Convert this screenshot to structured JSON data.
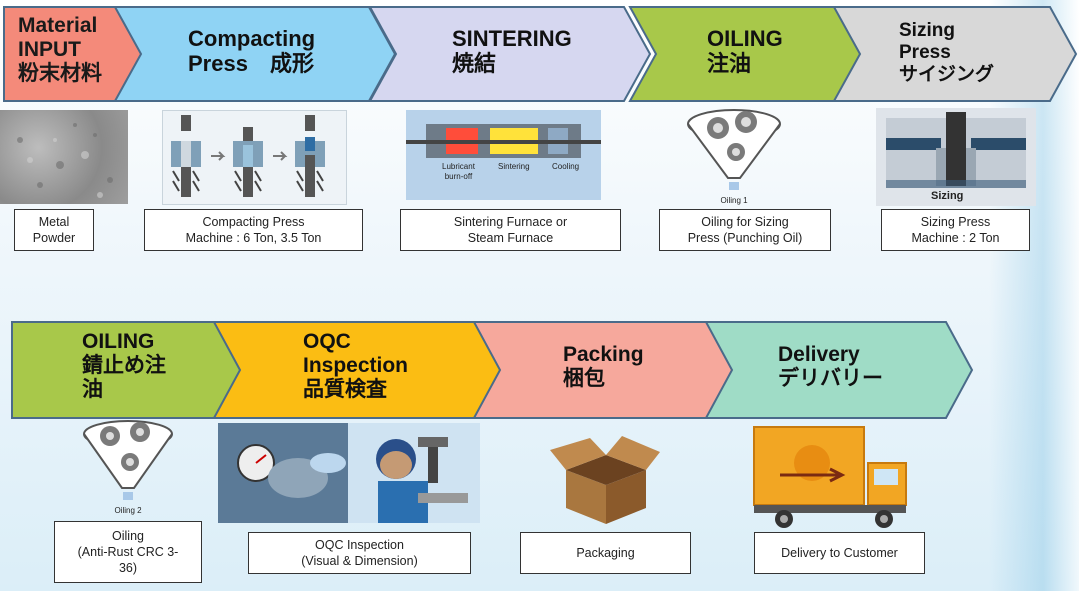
{
  "row1": {
    "steps": [
      {
        "title": "Material\nINPUT\n粉末材料",
        "color": "#f48a7a"
      },
      {
        "title": "Compacting\nPress　成形",
        "color": "#8fd3f4"
      },
      {
        "title": "SINTERING\n焼結",
        "color": "#d6d7f0"
      },
      {
        "title": "OILING\n注油",
        "color": "#a8c84a"
      },
      {
        "title": "Sizing\nPress\nサイジング",
        "color": "#d8d8d8"
      }
    ],
    "captions": [
      "Metal\nPowder",
      "Compacting Press\nMachine : 6 Ton, 3.5 Ton",
      "Sintering Furnace or\nSteam Furnace",
      "Oiling for Sizing\nPress (Punching Oil)",
      "Sizing Press\nMachine : 2 Ton"
    ],
    "sintering_labels": {
      "lubricant": "Lubricant\nburn-off",
      "sintering": "Sintering",
      "cooling": "Cooling"
    },
    "oiling_label": "Oiling 1",
    "sizing_label": "Sizing"
  },
  "row2": {
    "steps": [
      {
        "title": "OILING\n錆止め注\n油",
        "color": "#a8c84a"
      },
      {
        "title": "OQC\nInspection\n品質検査",
        "color": "#fbbd13"
      },
      {
        "title": "Packing\n梱包",
        "color": "#f6a89c"
      },
      {
        "title": "Delivery\nデリバリー",
        "color": "#9fdcc6"
      }
    ],
    "captions": [
      "Oiling\n(Anti-Rust CRC 3-\n36)",
      "OQC Inspection\n(Visual & Dimension)",
      "Packaging",
      "Delivery to Customer"
    ],
    "oiling_label": "Oiling 2"
  }
}
